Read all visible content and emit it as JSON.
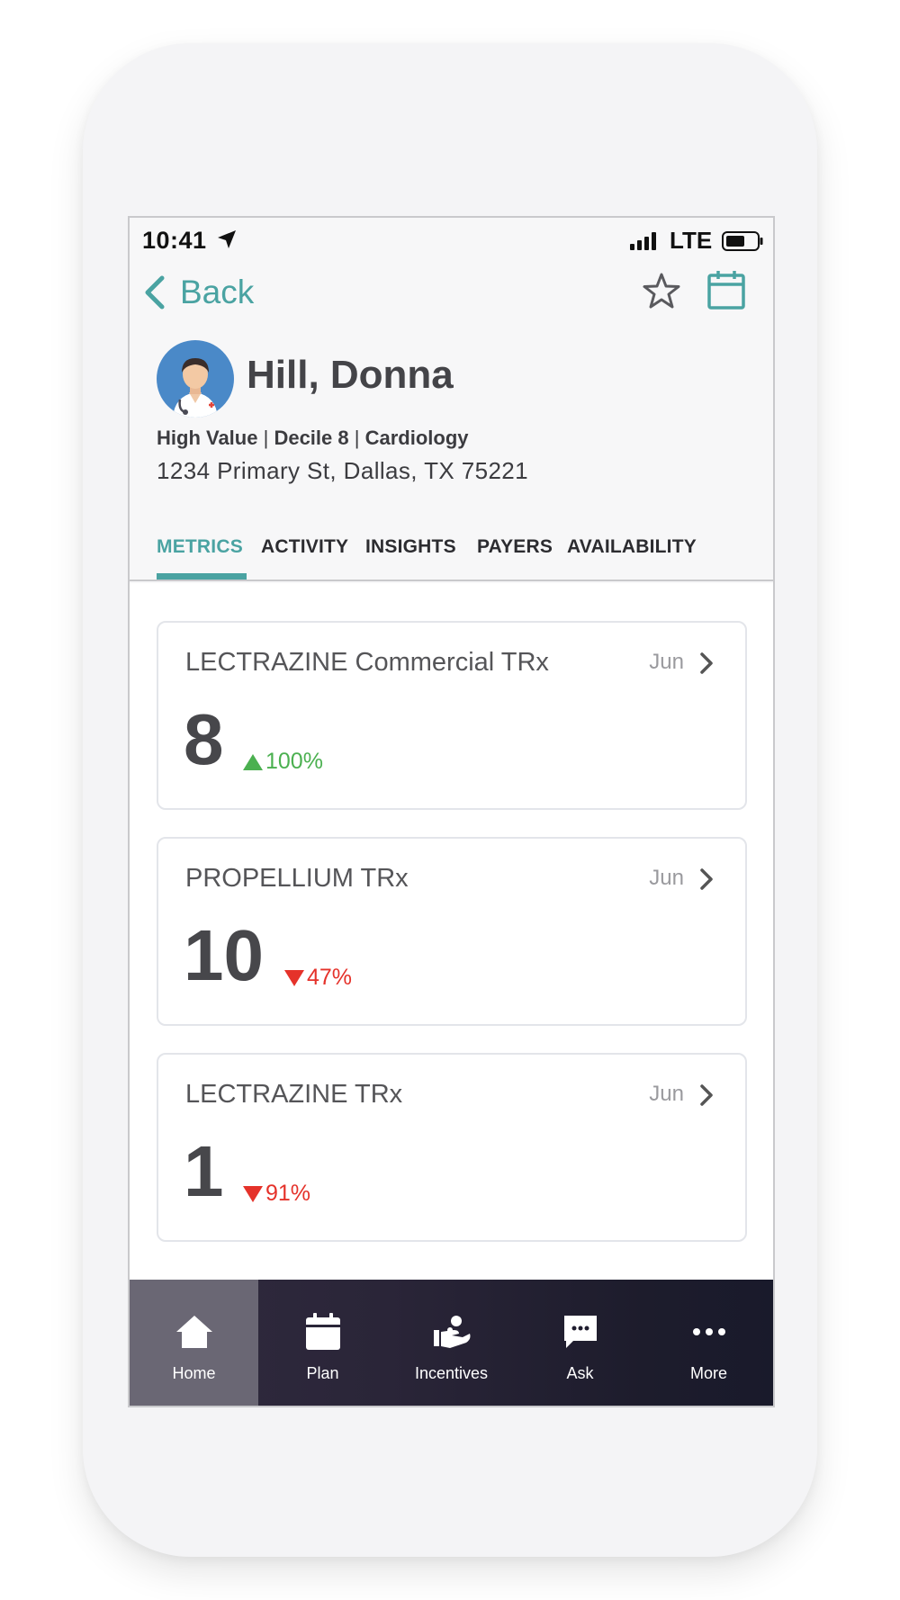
{
  "status_bar": {
    "time": "10:41",
    "network": "LTE"
  },
  "nav": {
    "back_label": "Back"
  },
  "profile": {
    "name": "Hill, Donna",
    "tags": [
      "High Value",
      "Decile 8",
      "Cardiology"
    ],
    "tag_separator": "|",
    "address": "1234 Primary St, Dallas, TX 75221"
  },
  "tabs": [
    {
      "label": "METRICS",
      "active": true
    },
    {
      "label": "ACTIVITY",
      "active": false
    },
    {
      "label": "INSIGHTS",
      "active": false
    },
    {
      "label": "PAYERS",
      "active": false
    },
    {
      "label": "AVAILABILITY",
      "active": false
    }
  ],
  "metrics": [
    {
      "title": "LECTRAZINE Commercial TRx",
      "month": "Jun",
      "value": "8",
      "delta": "100%",
      "direction": "up"
    },
    {
      "title": "PROPELLIUM TRx",
      "month": "Jun",
      "value": "10",
      "delta": "47%",
      "direction": "down"
    },
    {
      "title": "LECTRAZINE TRx",
      "month": "Jun",
      "value": "1",
      "delta": "91%",
      "direction": "down"
    }
  ],
  "tab_bar": [
    {
      "label": "Home",
      "icon": "home-icon",
      "active": true
    },
    {
      "label": "Plan",
      "icon": "calendar-icon",
      "active": false
    },
    {
      "label": "Incentives",
      "icon": "incentives-icon",
      "active": false
    },
    {
      "label": "Ask",
      "icon": "chat-icon",
      "active": false
    },
    {
      "label": "More",
      "icon": "more-dots-icon",
      "active": false
    }
  ],
  "colors": {
    "accent": "#4aa3a2",
    "up": "#4bb050",
    "down": "#e5322a",
    "avatar_bg": "#4a89c8"
  }
}
